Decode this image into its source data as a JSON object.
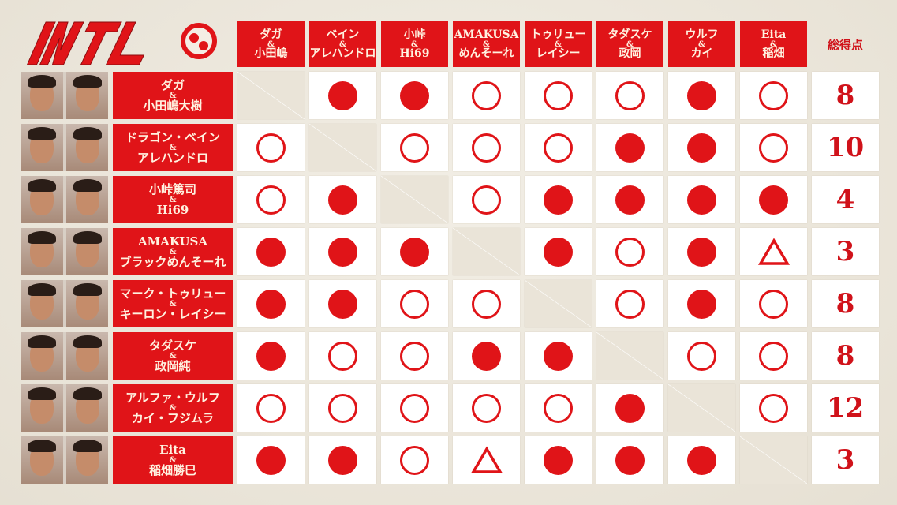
{
  "logo_text": "NJTL",
  "colors": {
    "accent": "#e01418",
    "background": "#ece7dc"
  },
  "total_header": "総得点",
  "symbols": {
    "loss": "filled-circle",
    "win": "open-circle",
    "draw": "triangle",
    "self": "diagonal-blank"
  },
  "columns": [
    {
      "top": "ダガ",
      "amp": "&",
      "bottom": "小田嶋"
    },
    {
      "top": "ベイン",
      "amp": "&",
      "bottom": "アレハンドロ"
    },
    {
      "top": "小峠",
      "amp": "&",
      "bottom": "Hi69"
    },
    {
      "top": "AMAKUSA",
      "amp": "&",
      "bottom": "めんそーれ"
    },
    {
      "top": "トゥリュー",
      "amp": "&",
      "bottom": "レイシー"
    },
    {
      "top": "タダスケ",
      "amp": "&",
      "bottom": "政岡"
    },
    {
      "top": "ウルフ",
      "amp": "&",
      "bottom": "カイ"
    },
    {
      "top": "Eita",
      "amp": "&",
      "bottom": "稲畑"
    }
  ],
  "rows": [
    {
      "top": "ダガ",
      "amp": "&",
      "bottom": "小田嶋大樹",
      "results": [
        "self",
        "loss",
        "loss",
        "win",
        "win",
        "win",
        "loss",
        "win"
      ],
      "total": "8"
    },
    {
      "top": "ドラゴン・ベイン",
      "amp": "&",
      "bottom": "アレハンドロ",
      "results": [
        "win",
        "self",
        "win",
        "win",
        "win",
        "loss",
        "loss",
        "win"
      ],
      "total": "10"
    },
    {
      "top": "小峠篤司",
      "amp": "&",
      "bottom": "Hi69",
      "results": [
        "win",
        "loss",
        "self",
        "win",
        "loss",
        "loss",
        "loss",
        "loss"
      ],
      "total": "4"
    },
    {
      "top": "AMAKUSA",
      "amp": "&",
      "bottom": "ブラックめんそーれ",
      "results": [
        "loss",
        "loss",
        "loss",
        "self",
        "loss",
        "win",
        "loss",
        "draw"
      ],
      "total": "3"
    },
    {
      "top": "マーク・トゥリュー",
      "amp": "&",
      "bottom": "キーロン・レイシー",
      "results": [
        "loss",
        "loss",
        "win",
        "win",
        "self",
        "win",
        "loss",
        "win"
      ],
      "total": "8"
    },
    {
      "top": "タダスケ",
      "amp": "&",
      "bottom": "政岡純",
      "results": [
        "loss",
        "win",
        "win",
        "loss",
        "loss",
        "self",
        "win",
        "win"
      ],
      "total": "8"
    },
    {
      "top": "アルファ・ウルフ",
      "amp": "&",
      "bottom": "カイ・フジムラ",
      "results": [
        "win",
        "win",
        "win",
        "win",
        "win",
        "loss",
        "self",
        "win"
      ],
      "total": "12"
    },
    {
      "top": "Eita",
      "amp": "&",
      "bottom": "稲畑勝巳",
      "results": [
        "loss",
        "loss",
        "win",
        "draw",
        "loss",
        "loss",
        "loss",
        "self"
      ],
      "total": "3"
    }
  ]
}
